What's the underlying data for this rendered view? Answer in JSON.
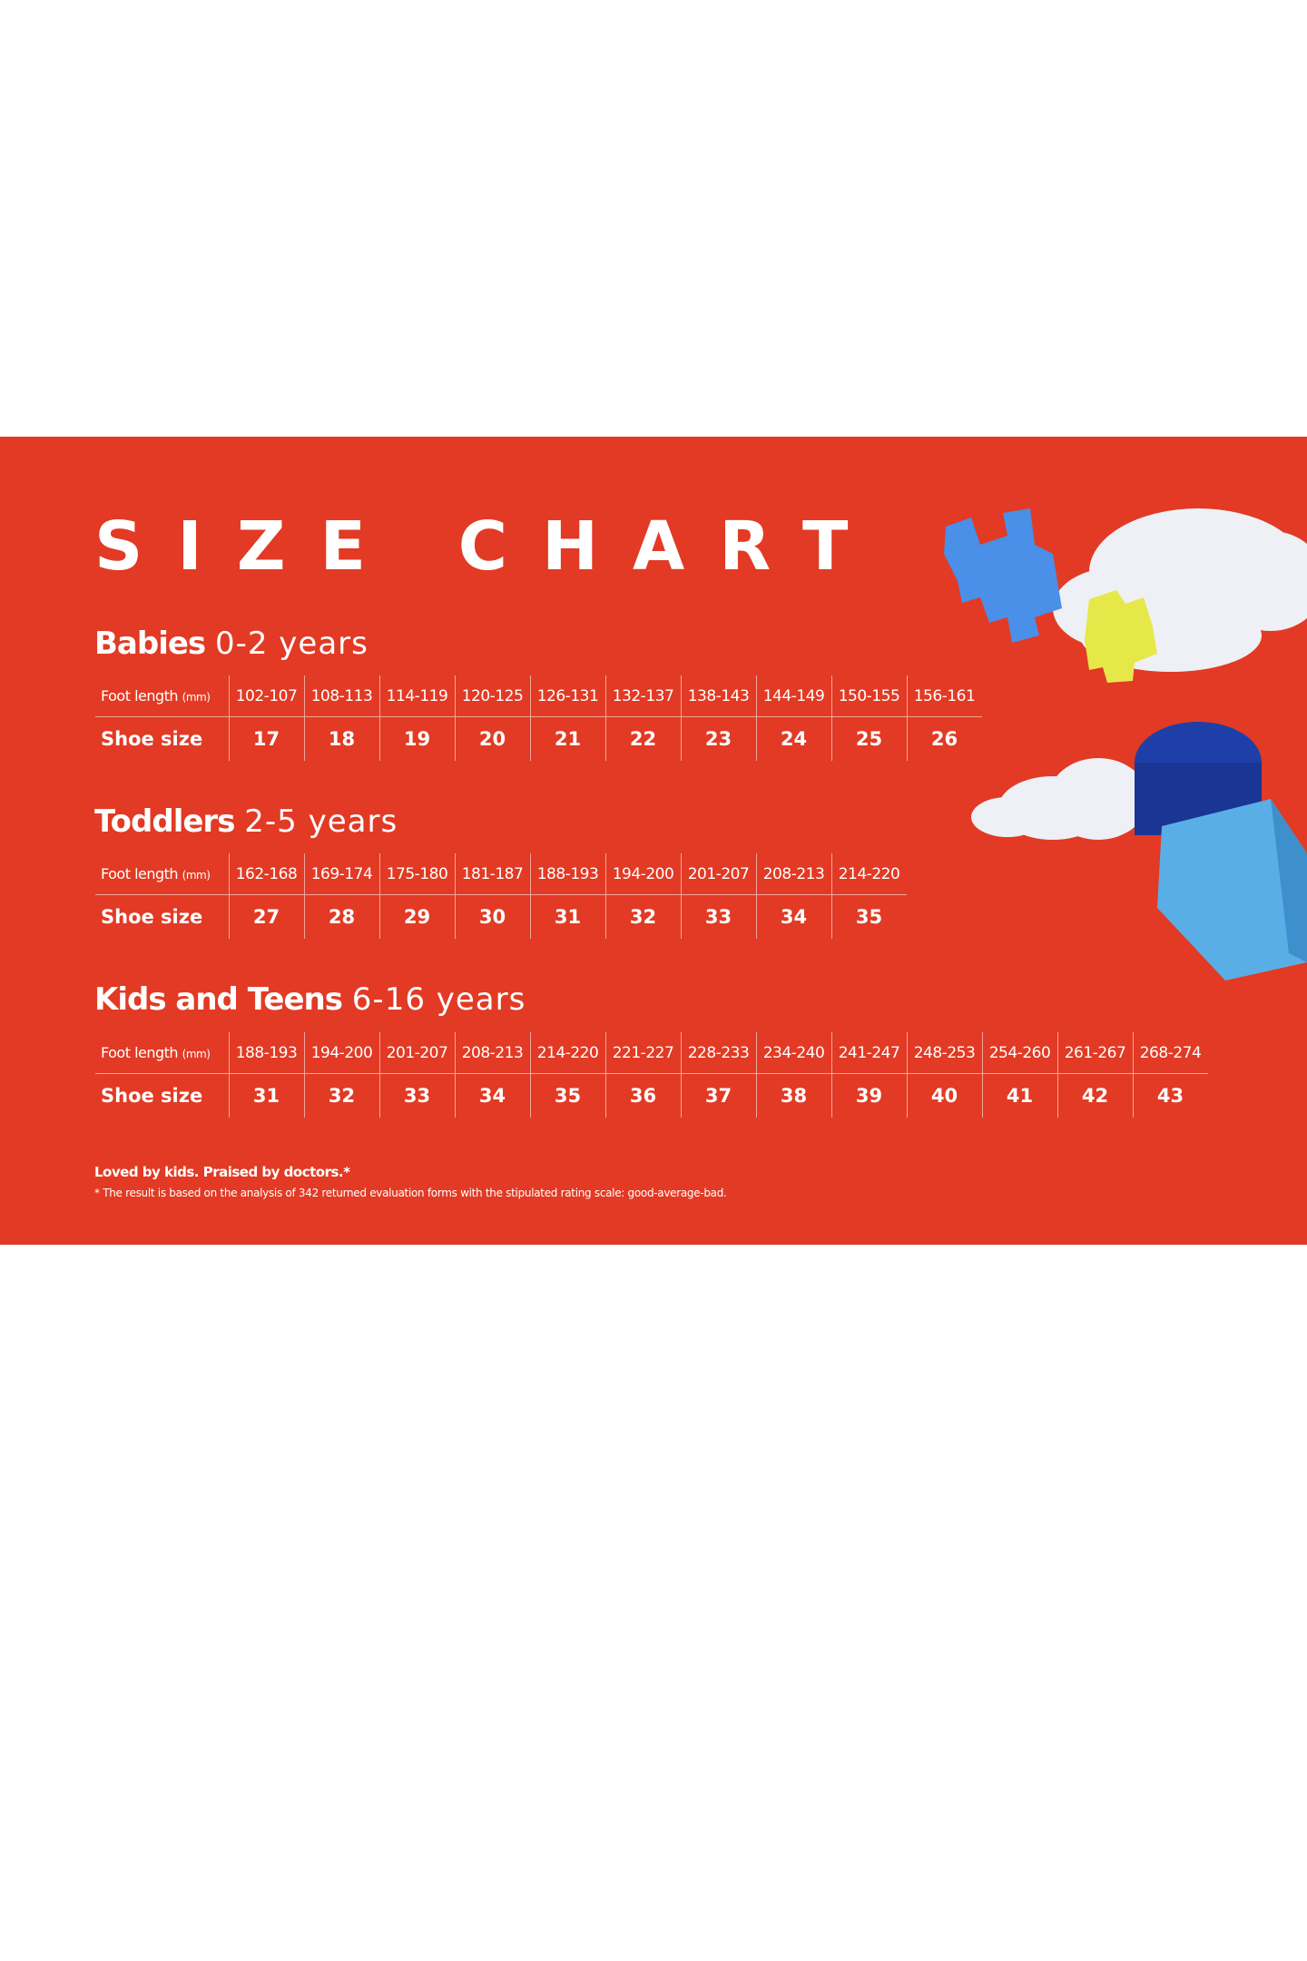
{
  "title": "SIZE CHART",
  "sections": [
    {
      "name": "Babies",
      "range": "0-2 years",
      "row_labels": {
        "foot_length": "Foot length",
        "unit": "(mm)",
        "shoe_size": "Shoe size"
      },
      "foot_length": [
        "102-107",
        "108-113",
        "114-119",
        "120-125",
        "126-131",
        "132-137",
        "138-143",
        "144-149",
        "150-155",
        "156-161"
      ],
      "shoe_size": [
        "17",
        "18",
        "19",
        "20",
        "21",
        "22",
        "23",
        "24",
        "25",
        "26"
      ]
    },
    {
      "name": "Toddlers",
      "range": "2-5 years",
      "row_labels": {
        "foot_length": "Foot length",
        "unit": "(mm)",
        "shoe_size": "Shoe size"
      },
      "foot_length": [
        "162-168",
        "169-174",
        "175-180",
        "181-187",
        "188-193",
        "194-200",
        "201-207",
        "208-213",
        "214-220"
      ],
      "shoe_size": [
        "27",
        "28",
        "29",
        "30",
        "31",
        "32",
        "33",
        "34",
        "35"
      ]
    },
    {
      "name": "Kids and Teens",
      "range": "6-16 years",
      "row_labels": {
        "foot_length": "Foot length",
        "unit": "(mm)",
        "shoe_size": "Shoe size"
      },
      "foot_length": [
        "188-193",
        "194-200",
        "201-207",
        "208-213",
        "214-220",
        "221-227",
        "228-233",
        "234-240",
        "241-247",
        "248-253",
        "254-260",
        "261-267",
        "268-274"
      ],
      "shoe_size": [
        "31",
        "32",
        "33",
        "34",
        "35",
        "36",
        "37",
        "38",
        "39",
        "40",
        "41",
        "42",
        "43"
      ]
    }
  ],
  "footer": {
    "tagline": "Loved by kids. Praised by doctors.*",
    "note": "* The result is based on the analysis of 342 returned evaluation forms with the stipulated rating scale: good-average-bad."
  },
  "colors": {
    "background": "#e23a24",
    "text": "#ffffff",
    "block_blue": "#4a8fe8",
    "block_yellow": "#e6e84a",
    "block_navy": "#1f3fa8",
    "block_light_blue": "#5aaee6"
  }
}
